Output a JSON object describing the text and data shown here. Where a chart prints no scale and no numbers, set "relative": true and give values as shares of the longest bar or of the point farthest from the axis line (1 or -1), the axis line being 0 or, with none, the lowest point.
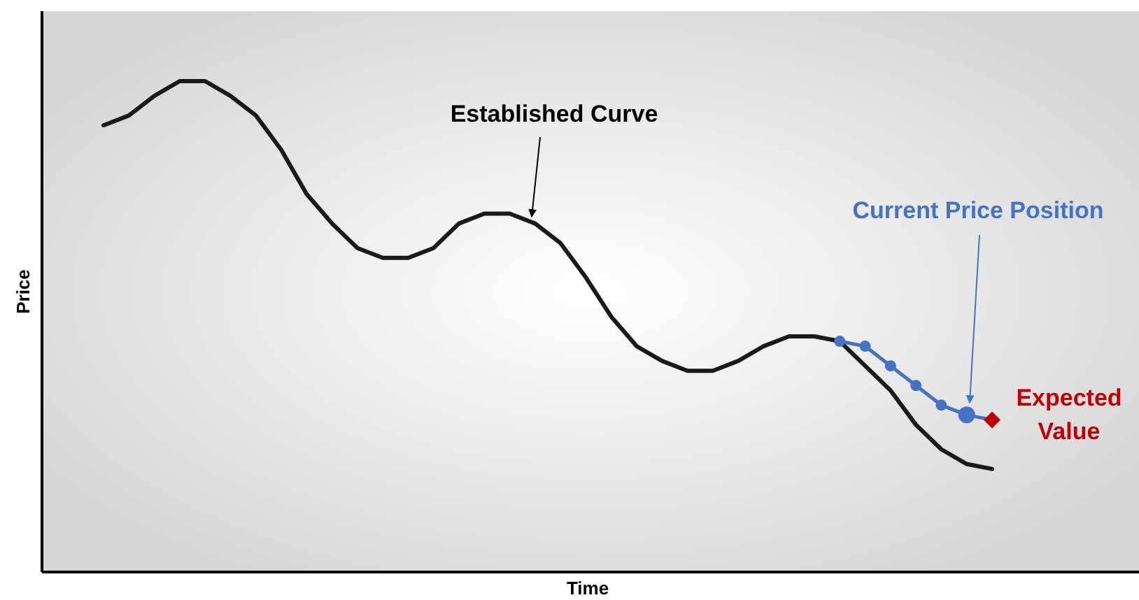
{
  "chart_data": {
    "type": "line",
    "relative": true,
    "xlabel": "Time",
    "ylabel": "Price",
    "grid": false,
    "legend": false,
    "categories": [
      null,
      null,
      null,
      null,
      null,
      null,
      null,
      null,
      null,
      null,
      null,
      null,
      null,
      null,
      null,
      null,
      null,
      null,
      null,
      null,
      null,
      null,
      null,
      null,
      null,
      null,
      null,
      null,
      null,
      null,
      null,
      null,
      null,
      null,
      null,
      null
    ],
    "series": [
      {
        "color": "#1a1a1a",
        "marker": "none",
        "values": [
          0.91,
          0.93,
          0.97,
          1,
          1,
          0.97,
          0.93,
          0.86,
          0.77,
          0.71,
          0.66,
          0.64,
          0.64,
          0.66,
          0.71,
          0.73,
          0.73,
          0.71,
          0.67,
          0.6,
          0.52,
          0.46,
          0.43,
          0.41,
          0.41,
          0.43,
          0.46,
          0.48,
          0.48,
          0.47,
          0.42,
          0.37,
          0.3,
          0.25,
          0.22,
          0.21
        ]
      },
      {
        "type": "line",
        "color": "#4472c4",
        "marker": "circle",
        "values": [
          null,
          null,
          null,
          null,
          null,
          null,
          null,
          null,
          null,
          null,
          null,
          null,
          null,
          null,
          null,
          null,
          null,
          null,
          null,
          null,
          null,
          null,
          null,
          null,
          null,
          null,
          null,
          null,
          null,
          0.47,
          0.46,
          0.42,
          0.38,
          0.34,
          0.32,
          0.31
        ]
      },
      {
        "type": "line",
        "color": "#c00000",
        "marker": "diamond",
        "values": [
          null,
          null,
          null,
          null,
          null,
          null,
          null,
          null,
          null,
          null,
          null,
          null,
          null,
          null,
          null,
          null,
          null,
          null,
          null,
          null,
          null,
          null,
          null,
          null,
          null,
          null,
          null,
          null,
          null,
          null,
          null,
          null,
          null,
          null,
          null,
          0.31
        ]
      }
    ],
    "annotations": [
      "Established Curve",
      "Current Price Position",
      "Expected Value"
    ]
  }
}
